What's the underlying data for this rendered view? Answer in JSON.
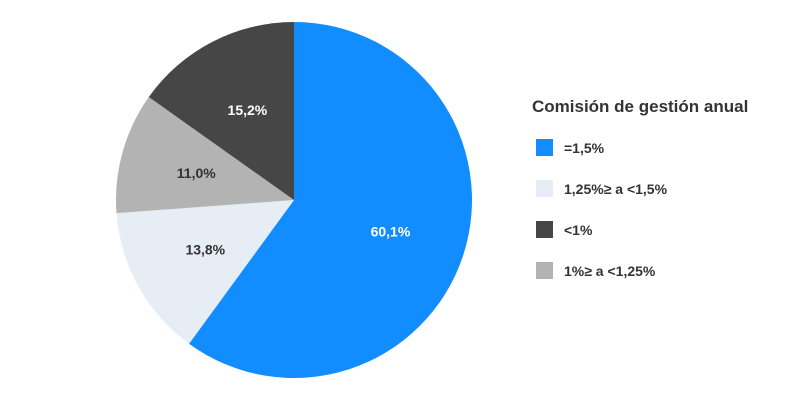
{
  "chart_data": {
    "type": "pie",
    "legend_title": "Comisión de gestión anual",
    "legend_position": "right",
    "slices": [
      {
        "label": "=1,5%",
        "value": 60.1,
        "display": "60,1%",
        "color": "#118dff",
        "label_color": "#ffffff"
      },
      {
        "label": "1,25%≥ a <1,5%",
        "value": 13.8,
        "display": "13,8%",
        "color": "#e6edf5",
        "label_color": "#333333"
      },
      {
        "label": "1%≥ a <1,25%",
        "value": 11.0,
        "display": "11,0%",
        "color": "#b3b3b3",
        "label_color": "#333333"
      },
      {
        "label": "<1%",
        "value": 15.2,
        "display": "15,2%",
        "color": "#464646",
        "label_color": "#ffffff"
      }
    ],
    "legend_order": [
      "=1,5%",
      "1,25%≥ a <1,5%",
      "<1%",
      "1%≥ a <1,25%"
    ]
  }
}
